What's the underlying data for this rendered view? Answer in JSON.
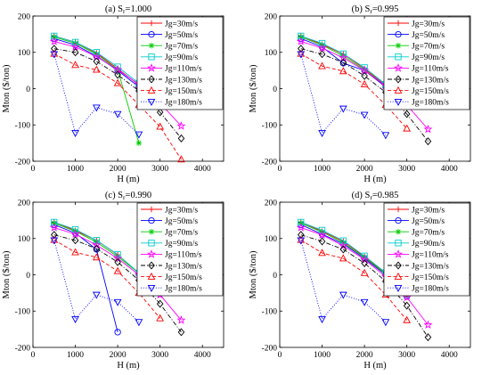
{
  "chart_data": [
    {
      "type": "line",
      "title": "(a) S",
      "title_sub": "r",
      "title_rest": "=1.000",
      "xlabel": "H (m)",
      "ylabel": "Mton ($/ton)",
      "xlim": [
        0,
        4500
      ],
      "ylim": [
        -200,
        200
      ],
      "xticks": [
        0,
        1000,
        2000,
        3000,
        4000
      ],
      "yticks": [
        -200,
        -100,
        0,
        100,
        200
      ],
      "legend_position": "top-right",
      "series": [
        {
          "name": "Jg=30m/s",
          "color": "#ff0000",
          "marker": "plus",
          "dash": "solid",
          "x": [
            500,
            1000,
            1500,
            2000,
            2500
          ],
          "y": [
            145,
            128,
            98,
            55,
            10
          ]
        },
        {
          "name": "Jg=50m/s",
          "color": "#0000ff",
          "marker": "circle",
          "dash": "solid",
          "x": [
            500,
            1000,
            1500,
            2000,
            2500
          ],
          "y": [
            138,
            120,
            90,
            50,
            5
          ]
        },
        {
          "name": "Jg=70m/s",
          "color": "#00cc00",
          "marker": "star",
          "dash": "solid",
          "x": [
            500,
            1000,
            1500,
            2000,
            2500
          ],
          "y": [
            142,
            125,
            95,
            52,
            -150
          ]
        },
        {
          "name": "Jg=90m/s",
          "color": "#00cccc",
          "marker": "square",
          "dash": "solid",
          "x": [
            500,
            1000,
            1500,
            2000,
            2500
          ],
          "y": [
            145,
            128,
            100,
            60,
            15
          ]
        },
        {
          "name": "Jg=110m/s",
          "color": "#ff00ff",
          "marker": "pentagram",
          "dash": "solid",
          "x": [
            500,
            1000,
            1500,
            2000,
            2500,
            3000,
            3500
          ],
          "y": [
            130,
            115,
            88,
            52,
            12,
            -40,
            -103
          ]
        },
        {
          "name": "Jg=130m/s",
          "color": "#000000",
          "marker": "diamond",
          "dash": "dashdot",
          "x": [
            500,
            1000,
            1500,
            2000,
            2500,
            3000,
            3500
          ],
          "y": [
            110,
            100,
            75,
            38,
            -6,
            -65,
            -137
          ]
        },
        {
          "name": "Jg=150m/s",
          "color": "#ff0000",
          "marker": "triangle-up",
          "dash": "dashed",
          "x": [
            500,
            1000,
            1500,
            2000,
            2500,
            3000,
            3500
          ],
          "y": [
            96,
            65,
            52,
            15,
            -45,
            -105,
            -195
          ]
        },
        {
          "name": "Jg=180m/s",
          "color": "#0000ff",
          "marker": "triangle-down",
          "dash": "dotted",
          "x": [
            500,
            1000,
            1500,
            2000,
            2500
          ],
          "y": [
            95,
            -122,
            -52,
            -70,
            -126
          ]
        }
      ]
    },
    {
      "type": "line",
      "title": "(b) S",
      "title_sub": "r",
      "title_rest": "=0.995",
      "xlabel": "H (m)",
      "ylabel": "Mton ($/ton)",
      "xlim": [
        0,
        4500
      ],
      "ylim": [
        -200,
        200
      ],
      "xticks": [
        0,
        1000,
        2000,
        3000,
        4000
      ],
      "yticks": [
        -200,
        -100,
        0,
        100,
        200
      ],
      "legend_position": "top-right",
      "series": [
        {
          "name": "Jg=30m/s",
          "color": "#ff0000",
          "marker": "plus",
          "dash": "solid",
          "x": [
            500,
            1000,
            1500,
            2000,
            2500,
            3000
          ],
          "y": [
            145,
            122,
            95,
            55,
            10,
            -45
          ]
        },
        {
          "name": "Jg=50m/s",
          "color": "#0000ff",
          "marker": "circle",
          "dash": "solid",
          "x": [
            500,
            1000,
            1500,
            2000,
            2500,
            3000
          ],
          "y": [
            138,
            115,
            70,
            50,
            5,
            -48
          ]
        },
        {
          "name": "Jg=70m/s",
          "color": "#00cc00",
          "marker": "star",
          "dash": "solid",
          "x": [
            500,
            1000,
            1500,
            2000,
            2500,
            3000
          ],
          "y": [
            142,
            120,
            90,
            52,
            8,
            -42
          ]
        },
        {
          "name": "Jg=90m/s",
          "color": "#00cccc",
          "marker": "square",
          "dash": "solid",
          "x": [
            500,
            1000,
            1500,
            2000,
            2500,
            3000
          ],
          "y": [
            145,
            125,
            96,
            58,
            12,
            -40
          ]
        },
        {
          "name": "Jg=110m/s",
          "color": "#ff00ff",
          "marker": "pentagram",
          "dash": "solid",
          "x": [
            500,
            1000,
            1500,
            2000,
            2500,
            3000,
            3500
          ],
          "y": [
            130,
            112,
            85,
            50,
            8,
            -45,
            -112
          ]
        },
        {
          "name": "Jg=130m/s",
          "color": "#000000",
          "marker": "diamond",
          "dash": "dashdot",
          "x": [
            500,
            1000,
            1500,
            2000,
            2500,
            3000,
            3500
          ],
          "y": [
            110,
            95,
            72,
            35,
            -10,
            -70,
            -145
          ]
        },
        {
          "name": "Jg=150m/s",
          "color": "#ff0000",
          "marker": "triangle-up",
          "dash": "dashed",
          "x": [
            500,
            1000,
            1500,
            2000,
            2500,
            3000
          ],
          "y": [
            96,
            62,
            48,
            12,
            -45,
            -110
          ]
        },
        {
          "name": "Jg=180m/s",
          "color": "#0000ff",
          "marker": "triangle-down",
          "dash": "dotted",
          "x": [
            500,
            1000,
            1500,
            2000,
            2500
          ],
          "y": [
            95,
            -122,
            -55,
            -72,
            -128
          ]
        }
      ]
    },
    {
      "type": "line",
      "title": "(c) S",
      "title_sub": "r",
      "title_rest": "=0.990",
      "xlabel": "H (m)",
      "ylabel": "Mton ($/ton)",
      "xlim": [
        0,
        4500
      ],
      "ylim": [
        -200,
        200
      ],
      "xticks": [
        0,
        1000,
        2000,
        3000,
        4000
      ],
      "yticks": [
        -200,
        -100,
        0,
        100,
        200
      ],
      "legend_position": "top-right",
      "series": [
        {
          "name": "Jg=30m/s",
          "color": "#ff0000",
          "marker": "plus",
          "dash": "solid",
          "x": [
            500,
            1000,
            1500,
            2000,
            2500
          ],
          "y": [
            145,
            122,
            95,
            55,
            5
          ]
        },
        {
          "name": "Jg=50m/s",
          "color": "#0000ff",
          "marker": "circle",
          "dash": "solid",
          "x": [
            500,
            1000,
            1500,
            2000
          ],
          "y": [
            138,
            115,
            70,
            -158
          ]
        },
        {
          "name": "Jg=70m/s",
          "color": "#00cc00",
          "marker": "star",
          "dash": "solid",
          "x": [
            500,
            1000,
            1500,
            2000,
            2500
          ],
          "y": [
            142,
            120,
            90,
            50,
            5
          ]
        },
        {
          "name": "Jg=90m/s",
          "color": "#00cccc",
          "marker": "square",
          "dash": "solid",
          "x": [
            500,
            1000,
            1500,
            2000,
            2500,
            3000
          ],
          "y": [
            145,
            125,
            95,
            56,
            5,
            -45
          ]
        },
        {
          "name": "Jg=110m/s",
          "color": "#ff00ff",
          "marker": "pentagram",
          "dash": "solid",
          "x": [
            500,
            1000,
            1500,
            2000,
            2500,
            3000,
            3500
          ],
          "y": [
            130,
            112,
            82,
            45,
            0,
            -55,
            -125
          ]
        },
        {
          "name": "Jg=130m/s",
          "color": "#000000",
          "marker": "diamond",
          "dash": "dashdot",
          "x": [
            500,
            1000,
            1500,
            2000,
            2500,
            3000,
            3500
          ],
          "y": [
            110,
            95,
            72,
            35,
            -15,
            -80,
            -158
          ]
        },
        {
          "name": "Jg=150m/s",
          "color": "#ff0000",
          "marker": "triangle-up",
          "dash": "dashed",
          "x": [
            500,
            1000,
            1500,
            2000,
            2500,
            3000
          ],
          "y": [
            96,
            62,
            48,
            10,
            -50,
            -120
          ]
        },
        {
          "name": "Jg=180m/s",
          "color": "#0000ff",
          "marker": "triangle-down",
          "dash": "dotted",
          "x": [
            500,
            1000,
            1500,
            2000,
            2500
          ],
          "y": [
            95,
            -122,
            -55,
            -75,
            -130
          ]
        }
      ]
    },
    {
      "type": "line",
      "title": "(d) S",
      "title_sub": "r",
      "title_rest": "=0.985",
      "xlabel": "H (m)",
      "ylabel": "Mton ($/ton)",
      "xlim": [
        0,
        4500
      ],
      "ylim": [
        -200,
        200
      ],
      "xticks": [
        0,
        1000,
        2000,
        3000,
        4000
      ],
      "yticks": [
        -200,
        -100,
        0,
        100,
        200
      ],
      "legend_position": "top-right",
      "series": [
        {
          "name": "Jg=30m/s",
          "color": "#ff0000",
          "marker": "plus",
          "dash": "solid",
          "x": [
            500,
            1000,
            1500,
            2000,
            2500,
            3000
          ],
          "y": [
            145,
            120,
            92,
            50,
            5,
            -55
          ]
        },
        {
          "name": "Jg=50m/s",
          "color": "#0000ff",
          "marker": "circle",
          "dash": "solid",
          "x": [
            500,
            1000,
            1500,
            2000,
            2500,
            3000
          ],
          "y": [
            138,
            112,
            85,
            45,
            0,
            -60
          ]
        },
        {
          "name": "Jg=70m/s",
          "color": "#00cc00",
          "marker": "star",
          "dash": "solid",
          "x": [
            500,
            1000,
            1500,
            2000,
            2500,
            3000
          ],
          "y": [
            142,
            118,
            88,
            48,
            2,
            -58
          ]
        },
        {
          "name": "Jg=90m/s",
          "color": "#00cccc",
          "marker": "square",
          "dash": "solid",
          "x": [
            500,
            1000,
            1500,
            2000,
            2500,
            3000
          ],
          "y": [
            145,
            123,
            94,
            52,
            6,
            -55
          ]
        },
        {
          "name": "Jg=110m/s",
          "color": "#ff00ff",
          "marker": "pentagram",
          "dash": "solid",
          "x": [
            500,
            1000,
            1500,
            2000,
            2500,
            3000,
            3500
          ],
          "y": [
            130,
            110,
            80,
            42,
            -5,
            -62,
            -138
          ]
        },
        {
          "name": "Jg=130m/s",
          "color": "#000000",
          "marker": "diamond",
          "dash": "dashdot",
          "x": [
            500,
            1000,
            1500,
            2000,
            2500,
            3000,
            3500
          ],
          "y": [
            110,
            92,
            70,
            32,
            -18,
            -85,
            -172
          ]
        },
        {
          "name": "Jg=150m/s",
          "color": "#ff0000",
          "marker": "triangle-up",
          "dash": "dashed",
          "x": [
            500,
            1000,
            1500,
            2000,
            2500,
            3000
          ],
          "y": [
            96,
            60,
            45,
            5,
            -55,
            -125
          ]
        },
        {
          "name": "Jg=180m/s",
          "color": "#0000ff",
          "marker": "triangle-down",
          "dash": "dotted",
          "x": [
            500,
            1000,
            1500,
            2000,
            2500
          ],
          "y": [
            95,
            -122,
            -55,
            -75,
            -130
          ]
        }
      ]
    }
  ]
}
